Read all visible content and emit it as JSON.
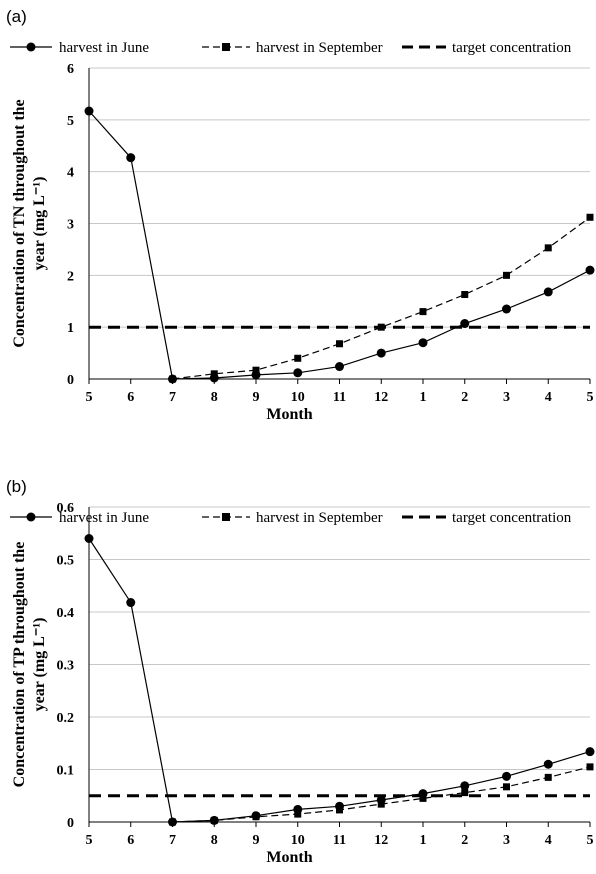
{
  "chart_data": [
    {
      "type": "line",
      "panel_label": "(a)",
      "xlabel": "Month",
      "ylabel": [
        "Concentration of TN throughout the",
        "year (mg L⁻¹)"
      ],
      "categories": [
        "5",
        "6",
        "7",
        "8",
        "9",
        "10",
        "11",
        "12",
        "1",
        "2",
        "3",
        "4",
        "5"
      ],
      "ylim": [
        0,
        6
      ],
      "yticks": [
        "0",
        "1",
        "2",
        "3",
        "4",
        "5",
        "6"
      ],
      "grid": true,
      "legend_position": "top",
      "series": [
        {
          "name": "harvest in June",
          "marker": "circle",
          "style": "solid",
          "values": [
            5.17,
            4.27,
            0.0,
            0.02,
            0.08,
            0.12,
            0.24,
            0.5,
            0.7,
            1.07,
            1.35,
            1.68,
            2.1
          ]
        },
        {
          "name": "harvest in September",
          "marker": "square",
          "style": "dashed",
          "values": [
            null,
            null,
            0.0,
            0.1,
            0.17,
            0.4,
            0.68,
            1.0,
            1.3,
            1.63,
            2.0,
            2.53,
            3.12
          ]
        },
        {
          "name": "target concentration",
          "marker": "none",
          "style": "thick-dashed",
          "values": [
            1,
            1,
            1,
            1,
            1,
            1,
            1,
            1,
            1,
            1,
            1,
            1,
            1
          ]
        }
      ]
    },
    {
      "type": "line",
      "panel_label": "(b)",
      "xlabel": "Month",
      "ylabel": [
        "Concentration of TP throughout the",
        "year (mg L⁻¹)"
      ],
      "categories": [
        "5",
        "6",
        "7",
        "8",
        "9",
        "10",
        "11",
        "12",
        "1",
        "2",
        "3",
        "4",
        "5"
      ],
      "ylim": [
        0,
        0.6
      ],
      "yticks": [
        "0",
        "0.1",
        "0.2",
        "0.3",
        "0.4",
        "0.5",
        "0.6"
      ],
      "grid": true,
      "legend_position": "top",
      "series": [
        {
          "name": "harvest in June",
          "marker": "circle",
          "style": "solid",
          "values": [
            0.54,
            0.418,
            0.0,
            0.003,
            0.012,
            0.024,
            0.03,
            0.042,
            0.054,
            0.069,
            0.087,
            0.11,
            0.134
          ]
        },
        {
          "name": "harvest in September",
          "marker": "square",
          "style": "dashed",
          "values": [
            null,
            null,
            0.0,
            0.003,
            0.01,
            0.015,
            0.023,
            0.034,
            0.045,
            0.056,
            0.067,
            0.085,
            0.105
          ]
        },
        {
          "name": "target concentration",
          "marker": "none",
          "style": "thick-dashed",
          "values": [
            0.05,
            0.05,
            0.05,
            0.05,
            0.05,
            0.05,
            0.05,
            0.05,
            0.05,
            0.05,
            0.05,
            0.05,
            0.05
          ]
        }
      ]
    }
  ]
}
